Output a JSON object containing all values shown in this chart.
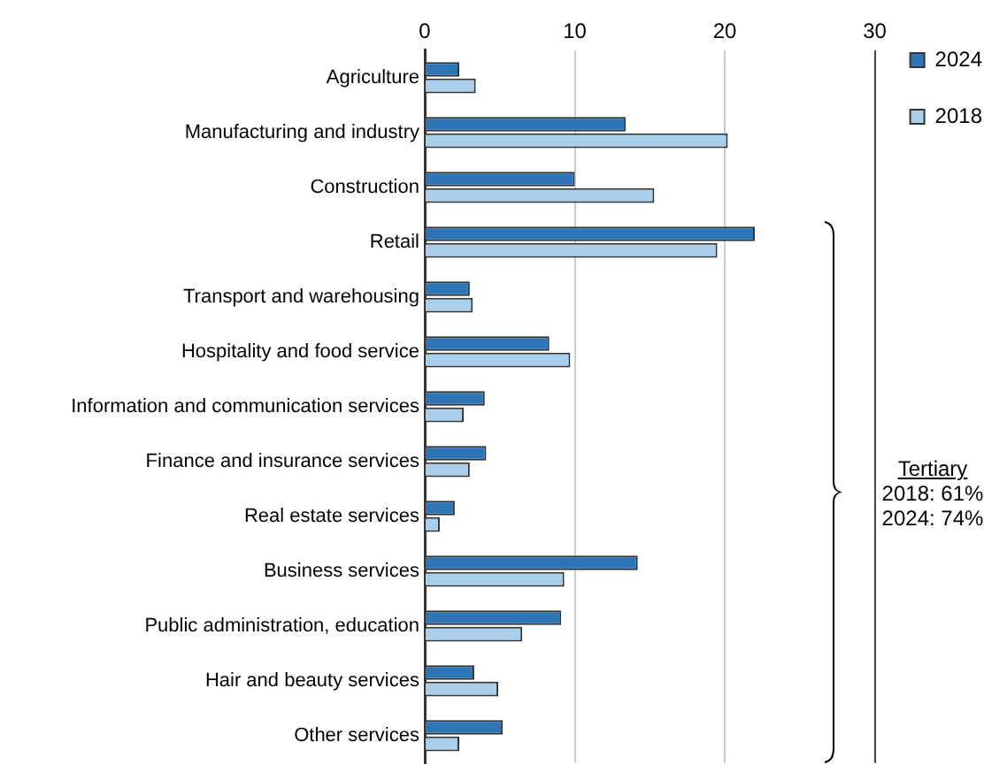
{
  "chart_data": {
    "type": "bar",
    "orientation": "horizontal",
    "categories": [
      "Agriculture",
      "Manufacturing and industry",
      "Construction",
      "Retail",
      "Transport and warehousing",
      "Hospitality and food service",
      "Information and communication services",
      "Finance and insurance services",
      "Real estate services",
      "Business services",
      "Public administration, education",
      "Hair and beauty services",
      "Other services"
    ],
    "series": [
      {
        "name": "2024",
        "color": "#2e75b6",
        "values": [
          2.3,
          13.4,
          10.0,
          22.0,
          3.0,
          8.3,
          4.0,
          4.1,
          2.0,
          14.2,
          9.1,
          3.3,
          5.2
        ]
      },
      {
        "name": "2018",
        "color": "#a9cfea",
        "values": [
          3.4,
          20.2,
          15.3,
          19.5,
          3.2,
          9.7,
          2.6,
          3.0,
          1.0,
          9.3,
          6.5,
          4.9,
          2.3
        ]
      }
    ],
    "xlim": [
      0,
      30
    ],
    "xticks": [
      0,
      10,
      20,
      30
    ],
    "grid": "x",
    "legend": "right",
    "annotations": [
      "Tertiary",
      "2018: 61%",
      "2024: 74%"
    ]
  }
}
